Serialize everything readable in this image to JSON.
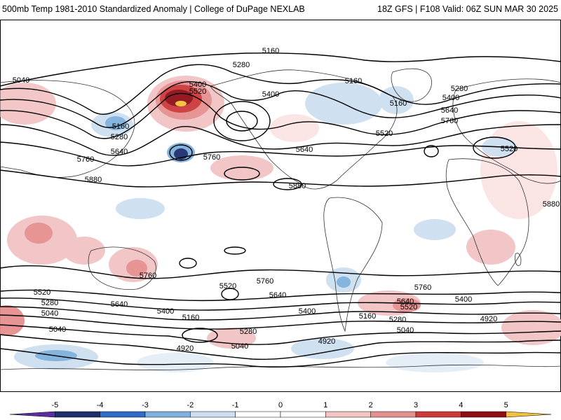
{
  "header": {
    "left_title": "500mb Temp 1981-2010 Standardized Anomaly | College of DuPage NEXLAB",
    "right_title": "18Z GFS | F108 Valid: 06Z SUN MAR 30 2025"
  },
  "map": {
    "contour_labels": [
      "5160",
      "5280",
      "5400",
      "5520",
      "5040",
      "5160",
      "5280",
      "5640",
      "5760",
      "5880",
      "5160",
      "5400",
      "5520",
      "5640",
      "5760",
      "5880",
      "5160",
      "5280",
      "5400",
      "5640",
      "5760",
      "5520",
      "5880",
      "5040",
      "5520",
      "5280",
      "5040",
      "5640",
      "5400",
      "5160",
      "4920",
      "5520",
      "5760",
      "5640",
      "5280",
      "5040",
      "4920",
      "5400",
      "5160",
      "5280",
      "5040",
      "4920",
      "5640",
      "5520",
      "5760",
      "5400",
      "4920"
    ]
  },
  "colorbar": {
    "ticks": [
      "-5",
      "-4",
      "-3",
      "-2",
      "-1",
      "0",
      "1",
      "2",
      "3",
      "4",
      "5"
    ],
    "colors": [
      "#5b2ca0",
      "#1e2f6e",
      "#2f6cc2",
      "#7fb1de",
      "#cddff0",
      "#ffffff",
      "#ffffff",
      "#f2c4c4",
      "#e58f8f",
      "#cc3a3a",
      "#8e0f16",
      "#f2c23a"
    ]
  }
}
